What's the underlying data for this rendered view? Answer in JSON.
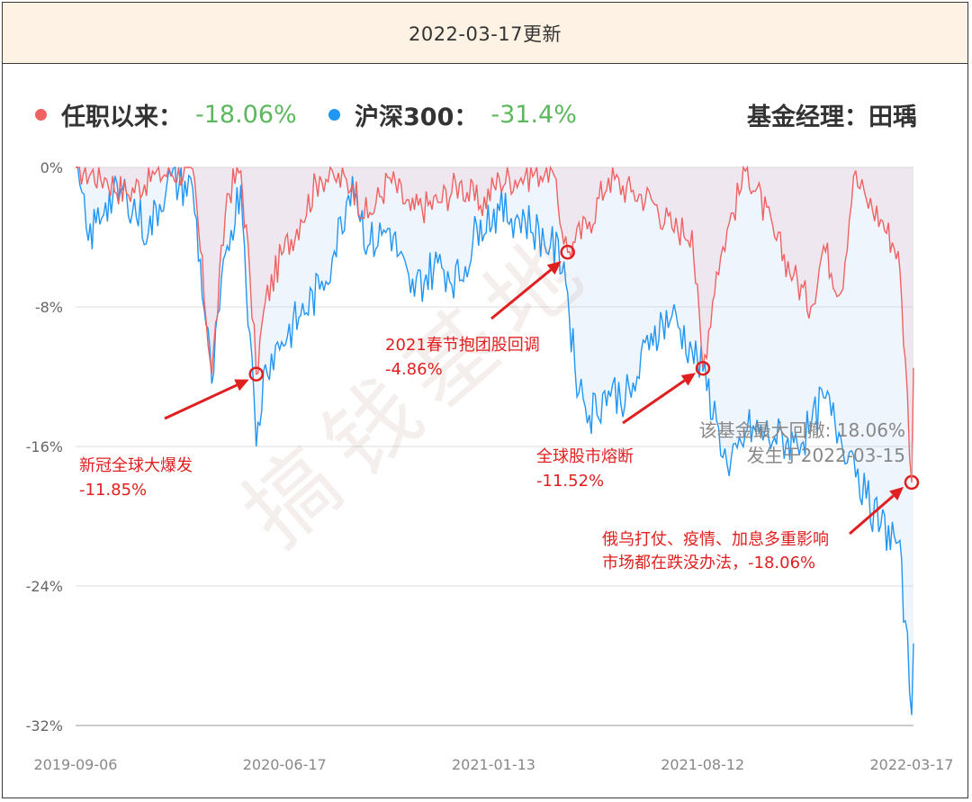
{
  "header": {
    "update_text": "2022-03-17更新"
  },
  "legend": {
    "fund": {
      "label": "任职以来：",
      "value": "-18.06%",
      "color": "#f06262"
    },
    "index": {
      "label": "沪深300：",
      "value": "-31.4%",
      "color": "#2196f3"
    }
  },
  "manager": {
    "text": "基金经理：田瑀"
  },
  "watermark": "搞钱基地",
  "chart_data": {
    "type": "area",
    "title": "",
    "xlabel": "",
    "ylabel": "",
    "x_range": [
      "2019-09-06",
      "2022-03-17"
    ],
    "ylim": [
      -32,
      0
    ],
    "y_ticks": [
      "0%",
      "-8%",
      "-16%",
      "-24%",
      "-32%"
    ],
    "x_ticks": [
      "2019-09-06",
      "2020-06-17",
      "2021-01-13",
      "2021-08-12",
      "2022-03-17"
    ],
    "grid": true,
    "series": [
      {
        "name": "任职以来",
        "color": "#f06262",
        "unit": "%",
        "points": [
          [
            "2019-09-06",
            0
          ],
          [
            "2019-10-08",
            -0.6
          ],
          [
            "2019-11-01",
            -1.5
          ],
          [
            "2019-12-02",
            -0.4
          ],
          [
            "2020-01-13",
            -0.1
          ],
          [
            "2020-02-03",
            -11.85
          ],
          [
            "2020-02-20",
            -1.5
          ],
          [
            "2020-03-06",
            -0.2
          ],
          [
            "2020-03-16",
            -6.2
          ],
          [
            "2020-03-23",
            -11.85
          ],
          [
            "2020-04-02",
            -7.7
          ],
          [
            "2020-04-20",
            -5.0
          ],
          [
            "2020-05-11",
            -3.0
          ],
          [
            "2020-06-01",
            -0.5
          ],
          [
            "2020-06-17",
            -0.6
          ],
          [
            "2020-07-07",
            -1.0
          ],
          [
            "2020-07-24",
            -2.9
          ],
          [
            "2020-08-17",
            -0.6
          ],
          [
            "2020-09-09",
            -2.5
          ],
          [
            "2020-10-09",
            -2.0
          ],
          [
            "2020-11-02",
            -0.9
          ],
          [
            "2020-11-25",
            -2.2
          ],
          [
            "2020-12-16",
            -0.7
          ],
          [
            "2021-01-13",
            -0.5
          ],
          [
            "2021-02-10",
            0
          ],
          [
            "2021-03-01",
            -4.86
          ],
          [
            "2021-03-09",
            -4.3
          ],
          [
            "2021-03-25",
            -3.1
          ],
          [
            "2021-04-15",
            -0.6
          ],
          [
            "2021-05-10",
            -1.4
          ],
          [
            "2021-06-01",
            -1.8
          ],
          [
            "2021-06-24",
            -3.5
          ],
          [
            "2021-07-16",
            -3.6
          ],
          [
            "2021-07-28",
            -11.52
          ],
          [
            "2021-08-12",
            -6.0
          ],
          [
            "2021-08-26",
            -3.2
          ],
          [
            "2021-09-15",
            0
          ],
          [
            "2021-10-15",
            -4.0
          ],
          [
            "2021-11-05",
            -6.2
          ],
          [
            "2021-11-24",
            -8.0
          ],
          [
            "2021-12-08",
            -4.5
          ],
          [
            "2021-12-27",
            -7.2
          ],
          [
            "2022-01-10",
            -0.5
          ],
          [
            "2022-01-24",
            -1.8
          ],
          [
            "2022-02-09",
            -3.0
          ],
          [
            "2022-02-28",
            -4.8
          ],
          [
            "2022-03-08",
            -11.0
          ],
          [
            "2022-03-15",
            -18.06
          ],
          [
            "2022-03-17",
            -11.5
          ]
        ]
      },
      {
        "name": "沪深300",
        "color": "#2196f3",
        "unit": "%",
        "points": [
          [
            "2019-09-06",
            0
          ],
          [
            "2019-09-20",
            -4.2
          ],
          [
            "2019-10-09",
            -2.0
          ],
          [
            "2019-11-01",
            -1.5
          ],
          [
            "2019-11-25",
            -3.8
          ],
          [
            "2019-12-16",
            -0.8
          ],
          [
            "2020-01-13",
            -1.2
          ],
          [
            "2020-02-03",
            -12.4
          ],
          [
            "2020-02-20",
            -4.5
          ],
          [
            "2020-03-06",
            -1.0
          ],
          [
            "2020-03-16",
            -9.5
          ],
          [
            "2020-03-23",
            -16.0
          ],
          [
            "2020-04-02",
            -11.3
          ],
          [
            "2020-04-20",
            -10.0
          ],
          [
            "2020-05-11",
            -8.5
          ],
          [
            "2020-06-01",
            -7.0
          ],
          [
            "2020-06-17",
            -4.8
          ],
          [
            "2020-07-07",
            -0.5
          ],
          [
            "2020-07-24",
            -4.5
          ],
          [
            "2020-08-17",
            -3.5
          ],
          [
            "2020-09-09",
            -7.2
          ],
          [
            "2020-10-09",
            -5.5
          ],
          [
            "2020-11-02",
            -6.5
          ],
          [
            "2020-11-25",
            -3.0
          ],
          [
            "2020-12-16",
            -2.5
          ],
          [
            "2021-01-13",
            -3.0
          ],
          [
            "2021-02-10",
            -4.5
          ],
          [
            "2021-02-25",
            -5.4
          ],
          [
            "2021-03-09",
            -11.5
          ],
          [
            "2021-03-25",
            -14.2
          ],
          [
            "2021-04-15",
            -12.8
          ],
          [
            "2021-05-10",
            -13.2
          ],
          [
            "2021-06-01",
            -9.5
          ],
          [
            "2021-06-24",
            -8.5
          ],
          [
            "2021-07-16",
            -10.5
          ],
          [
            "2021-07-28",
            -11.7
          ],
          [
            "2021-08-12",
            -14.5
          ],
          [
            "2021-08-26",
            -17.7
          ],
          [
            "2021-09-15",
            -15.0
          ],
          [
            "2021-10-15",
            -15.5
          ],
          [
            "2021-11-05",
            -15.8
          ],
          [
            "2021-11-24",
            -15.0
          ],
          [
            "2021-12-08",
            -13.2
          ],
          [
            "2021-12-27",
            -15.5
          ],
          [
            "2022-01-10",
            -16.5
          ],
          [
            "2022-01-24",
            -19.0
          ],
          [
            "2022-02-09",
            -20.5
          ],
          [
            "2022-02-28",
            -21.5
          ],
          [
            "2022-03-08",
            -26.0
          ],
          [
            "2022-03-15",
            -31.4
          ],
          [
            "2022-03-17",
            -27.3
          ]
        ]
      }
    ],
    "annotations": [
      {
        "text": "新冠全球大爆发",
        "value": "-11.85%",
        "date": "2020-03-23",
        "y": -11.85
      },
      {
        "text": "2021春节抱团股回调",
        "value": "-4.86%",
        "date": "2021-03-01",
        "y": -4.86
      },
      {
        "text": "全球股市熔断",
        "value": "-11.52%",
        "date": "2021-07-28",
        "y": -11.52
      },
      {
        "text": "俄乌打仗、疫情、加息多重影响",
        "text2": "市场都在跌没办法，",
        "value": "-18.06%",
        "date": "2022-03-15",
        "y": -18.06
      }
    ],
    "tooltip": {
      "line1": "该基金最大回撤: 18.06%",
      "line2": "发生于2022-03-15"
    }
  }
}
